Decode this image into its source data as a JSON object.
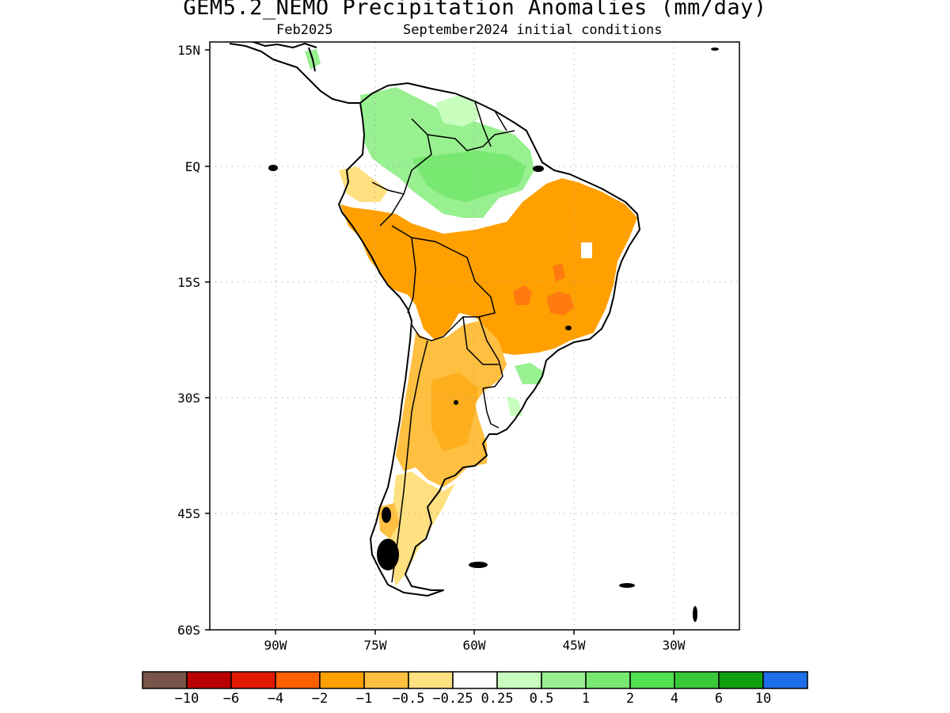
{
  "title": "GEM5.2_NEMO Precipitation Anomalies (mm/day)",
  "subtitle_left": "Feb2025",
  "subtitle_right": "September2024 initial conditions",
  "map": {
    "lat_ticks": [
      "15N",
      "EQ",
      "15S",
      "30S",
      "45S",
      "60S"
    ],
    "lon_ticks": [
      "90W",
      "75W",
      "60W",
      "45W",
      "30W"
    ]
  },
  "colorbar": {
    "labels": [
      "−10",
      "−6",
      "−4",
      "−2",
      "−1",
      "−0.5",
      "−0.25",
      "0.25",
      "0.5",
      "1",
      "2",
      "4",
      "6",
      "10"
    ],
    "colors": [
      "#7a5448",
      "#b80000",
      "#e01a00",
      "#ff6000",
      "#ffa000",
      "#ffbf40",
      "#ffe080",
      "#ffffff",
      "#c8ffbe",
      "#98f090",
      "#78e870",
      "#50e050",
      "#38c838",
      "#10a010",
      "#1e6ee8"
    ]
  }
}
